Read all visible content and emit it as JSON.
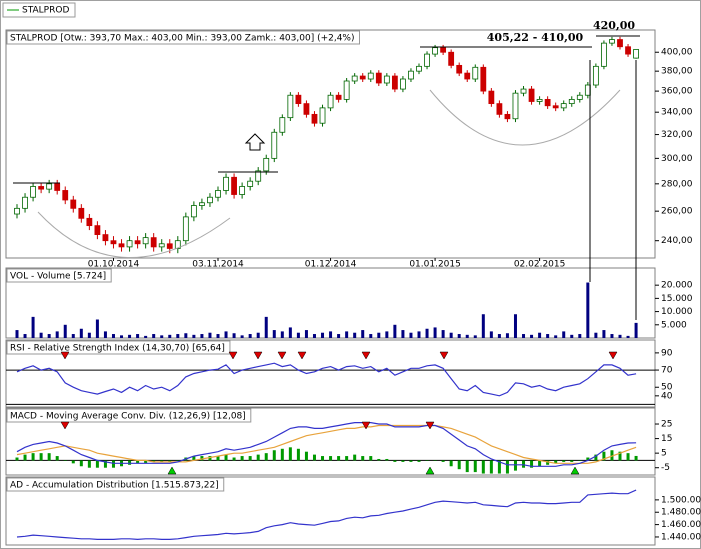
{
  "chart_data": [
    {
      "type": "candlestick",
      "legend": "STALPROD",
      "title": "STALPROD [Otw.: 393,70  Max.: 403,00  Min.: 393,00  Zamk.: 403,00] (+2,4%)",
      "annotations": [
        "405,22 - 410,00",
        "420,00"
      ],
      "log_scale": true,
      "up_color": "#009900",
      "down_color": "#cc0000",
      "categories": [
        null,
        null,
        null,
        null,
        null,
        null,
        null,
        null,
        null,
        null,
        null,
        null,
        "01.10.2014",
        null,
        null,
        null,
        null,
        null,
        null,
        null,
        null,
        null,
        null,
        null,
        null,
        "03.11.2014",
        null,
        null,
        null,
        null,
        null,
        null,
        null,
        null,
        null,
        null,
        null,
        null,
        null,
        "01.12.2014",
        null,
        null,
        null,
        null,
        null,
        null,
        null,
        null,
        null,
        null,
        null,
        null,
        "01.01.2015",
        null,
        null,
        null,
        null,
        null,
        null,
        null,
        null,
        null,
        null,
        null,
        null,
        "02.02.2015",
        null,
        null,
        null,
        null,
        null,
        null,
        null,
        null,
        null,
        null,
        null,
        null
      ],
      "open": [
        258,
        262,
        270,
        278,
        276,
        280,
        275,
        268,
        262,
        255,
        250,
        244,
        240,
        238,
        236,
        240,
        238,
        242,
        236,
        238,
        235,
        240,
        256,
        264,
        266,
        270,
        275,
        285,
        272,
        278,
        282,
        290,
        300,
        322,
        335,
        356,
        348,
        338,
        330,
        344,
        356,
        352,
        370,
        375,
        372,
        378,
        368,
        375,
        362,
        372,
        380,
        385,
        398,
        405,
        400,
        386,
        378,
        372,
        384,
        360,
        348,
        338,
        334,
        358,
        362,
        350,
        352,
        346,
        344,
        348,
        352,
        356,
        366,
        385,
        410,
        414,
        406,
        393.7
      ],
      "high": [
        265,
        273,
        281,
        281,
        283,
        283,
        278,
        271,
        265,
        258,
        253,
        247,
        243,
        241,
        243,
        243,
        245,
        245,
        241,
        241,
        243,
        259,
        267,
        269,
        273,
        278,
        288,
        288,
        281,
        285,
        293,
        303,
        325,
        338,
        359,
        359,
        351,
        341,
        347,
        359,
        359,
        373,
        378,
        378,
        381,
        381,
        378,
        378,
        375,
        383,
        388,
        401,
        408,
        408,
        403,
        389,
        381,
        387,
        387,
        363,
        351,
        341,
        361,
        365,
        365,
        355,
        355,
        349,
        351,
        355,
        359,
        369,
        388,
        413,
        417,
        417,
        409,
        403
      ],
      "low": [
        255,
        259,
        267,
        273,
        273,
        272,
        265,
        259,
        252,
        247,
        241,
        237,
        235,
        233,
        233,
        235,
        235,
        233,
        233,
        232,
        232,
        237,
        253,
        261,
        263,
        267,
        272,
        269,
        269,
        275,
        279,
        287,
        297,
        319,
        332,
        345,
        335,
        327,
        327,
        341,
        349,
        349,
        367,
        369,
        369,
        365,
        365,
        359,
        359,
        369,
        377,
        382,
        395,
        397,
        383,
        375,
        369,
        369,
        357,
        345,
        335,
        331,
        331,
        355,
        347,
        347,
        343,
        341,
        341,
        345,
        349,
        353,
        363,
        382,
        407,
        403,
        395,
        393
      ],
      "close": [
        262,
        270,
        278,
        276,
        280,
        275,
        268,
        262,
        255,
        250,
        244,
        240,
        238,
        236,
        240,
        238,
        242,
        236,
        238,
        235,
        240,
        256,
        264,
        266,
        270,
        275,
        285,
        272,
        278,
        282,
        290,
        300,
        322,
        335,
        356,
        348,
        338,
        330,
        344,
        356,
        352,
        370,
        375,
        372,
        378,
        368,
        375,
        362,
        372,
        380,
        385,
        398,
        405,
        400,
        386,
        378,
        372,
        384,
        360,
        348,
        338,
        334,
        358,
        362,
        350,
        352,
        346,
        344,
        348,
        352,
        356,
        366,
        385,
        410,
        414,
        406,
        398,
        403
      ],
      "ylim": [
        229,
        418
      ],
      "yticks": [
        {
          "value": 240,
          "label": "240,00"
        },
        {
          "value": 260,
          "label": "260,00"
        },
        {
          "value": 280,
          "label": "280,00"
        },
        {
          "value": 300,
          "label": "300,00"
        },
        {
          "value": 320,
          "label": "320,00"
        },
        {
          "value": 340,
          "label": "340,00"
        },
        {
          "value": 360,
          "label": "360,00"
        },
        {
          "value": 380,
          "label": "380,00"
        },
        {
          "value": 400,
          "label": "400,00"
        }
      ]
    },
    {
      "type": "bar",
      "title": "VOL - Volume [5.724]",
      "color": "#000080",
      "values": [
        3000,
        1500,
        8000,
        2000,
        1500,
        2500,
        5000,
        1500,
        3500,
        2000,
        7000,
        2500,
        1500,
        1000,
        1200,
        1500,
        800,
        1500,
        1000,
        1200,
        1500,
        1800,
        1200,
        1500,
        2000,
        1500,
        2500,
        1800,
        1000,
        1500,
        2000,
        8000,
        3000,
        2500,
        4000,
        2000,
        3000,
        1500,
        2000,
        2500,
        1500,
        2500,
        2000,
        3000,
        1500,
        2000,
        2500,
        5000,
        3000,
        2000,
        2500,
        3500,
        4000,
        3000,
        2000,
        1500,
        1200,
        1000,
        9000,
        2500,
        1500,
        1800,
        9000,
        1500,
        1200,
        2000,
        1500,
        1000,
        2500,
        1200,
        1500,
        21000,
        2000,
        3000,
        1500,
        1200,
        800,
        5724
      ],
      "ylim": [
        0,
        26500
      ],
      "yticks": [
        {
          "value": 5000,
          "label": "5.000"
        },
        {
          "value": 10000,
          "label": "10.000"
        },
        {
          "value": 15000,
          "label": "15.000"
        },
        {
          "value": 20000,
          "label": "20.000"
        }
      ]
    },
    {
      "type": "line",
      "title": "RSI - Relative Strength Index (14,30,70) [65,64]",
      "color": "#3333cc",
      "values": [
        68,
        72,
        75,
        70,
        72,
        68,
        55,
        50,
        46,
        44,
        42,
        45,
        48,
        44,
        50,
        46,
        52,
        48,
        50,
        46,
        52,
        62,
        66,
        68,
        70,
        71,
        76,
        66,
        70,
        72,
        74,
        76,
        78,
        74,
        76,
        70,
        66,
        68,
        72,
        74,
        70,
        74,
        75,
        72,
        74,
        68,
        72,
        64,
        68,
        72,
        72,
        75,
        76,
        72,
        60,
        48,
        46,
        52,
        44,
        42,
        40,
        44,
        55,
        54,
        50,
        52,
        48,
        46,
        50,
        52,
        54,
        60,
        68,
        76,
        76,
        72,
        64,
        65.64
      ],
      "reference_lines": [
        30,
        70
      ],
      "ylim": [
        27,
        105
      ],
      "yticks": [
        40,
        50,
        70,
        90
      ]
    },
    {
      "type": "combo",
      "title": "MACD - Moving Average Conv. Div. (12,26,9) [12,08]",
      "series": [
        {
          "type": "bar",
          "color": "#009900",
          "values": [
            2,
            4,
            5,
            5,
            5,
            3,
            0,
            -2,
            -4,
            -5,
            -5,
            -5,
            -5,
            -4,
            -3,
            -2,
            -2,
            -1,
            -1,
            -1,
            0,
            2,
            3,
            3,
            3,
            3,
            4,
            2,
            3,
            3,
            4,
            5,
            7,
            8,
            9,
            8,
            6,
            4,
            3,
            3,
            3,
            3,
            4,
            3,
            3,
            1,
            1,
            -1,
            -1,
            -1,
            -1,
            0,
            0,
            -1,
            -4,
            -6,
            -8,
            -8,
            -9,
            -9,
            -9,
            -9,
            -7,
            -5,
            -5,
            -4,
            -3,
            -2,
            -1,
            -1,
            0,
            2,
            4,
            6,
            7,
            6,
            5,
            3.08
          ]
        },
        {
          "type": "line",
          "color": "#e8a33c",
          "values": [
            4,
            5,
            6,
            7,
            8,
            9,
            10,
            9,
            8,
            7,
            5,
            4,
            3,
            2,
            1,
            0,
            0,
            -1,
            -1,
            -1,
            -1,
            -1,
            0,
            1,
            2,
            3,
            4,
            5,
            5,
            6,
            7,
            8,
            9,
            11,
            13,
            15,
            17,
            18,
            19,
            20,
            21,
            22,
            22,
            23,
            23,
            24,
            24,
            24,
            24,
            24,
            24,
            24,
            24,
            23,
            22,
            20,
            18,
            16,
            13,
            10,
            8,
            6,
            4,
            2,
            1,
            0,
            -1,
            -2,
            -2,
            -2,
            -2,
            -2,
            -1,
            1,
            3,
            5,
            7,
            9
          ]
        },
        {
          "type": "line",
          "color": "#3333cc",
          "values": [
            6,
            9,
            11,
            12,
            13,
            12,
            10,
            7,
            4,
            2,
            0,
            -1,
            -2,
            -2,
            -2,
            -2,
            -2,
            -2,
            -2,
            -2,
            -1,
            1,
            3,
            4,
            5,
            6,
            8,
            7,
            8,
            9,
            11,
            13,
            16,
            19,
            22,
            23,
            23,
            22,
            22,
            23,
            24,
            25,
            26,
            26,
            26,
            25,
            25,
            23,
            23,
            23,
            23,
            24,
            24,
            22,
            18,
            14,
            10,
            8,
            4,
            1,
            -1,
            -3,
            -3,
            -3,
            -4,
            -4,
            -4,
            -4,
            -3,
            -3,
            -2,
            0,
            3,
            7,
            10,
            11,
            12,
            12.08
          ]
        }
      ],
      "ylim": [
        -10,
        36
      ],
      "yticks": [
        -5,
        5,
        15,
        25
      ]
    },
    {
      "type": "line",
      "title": "AD - Accumulation Distribution [1.515.873,22]",
      "color": "#3333cc",
      "values": [
        1440000,
        1441000,
        1443000,
        1442000,
        1441000,
        1440000,
        1439000,
        1438000,
        1437000,
        1437000,
        1436000,
        1436000,
        1436000,
        1437000,
        1437000,
        1436000,
        1437000,
        1437000,
        1436000,
        1436000,
        1437000,
        1439000,
        1441000,
        1442000,
        1443000,
        1444000,
        1446000,
        1445000,
        1446000,
        1447000,
        1449000,
        1455000,
        1458000,
        1460000,
        1463000,
        1461000,
        1460000,
        1459000,
        1462000,
        1465000,
        1466000,
        1470000,
        1472000,
        1471000,
        1474000,
        1475000,
        1478000,
        1480000,
        1482000,
        1485000,
        1488000,
        1492000,
        1496000,
        1498000,
        1497000,
        1496000,
        1495000,
        1496000,
        1492000,
        1491000,
        1490000,
        1489000,
        1495000,
        1496000,
        1495000,
        1495000,
        1494000,
        1494000,
        1495000,
        1496000,
        1496000,
        1508000,
        1509000,
        1510000,
        1511000,
        1510000,
        1510000,
        1515873.22
      ],
      "ylim": [
        1427000,
        1537000
      ],
      "yticks": [
        {
          "value": 1440000,
          "label": "1.440.000"
        },
        {
          "value": 1460000,
          "label": "1.460.000"
        },
        {
          "value": 1480000,
          "label": "1.480.000"
        },
        {
          "value": 1500000,
          "label": "1.500.000"
        }
      ]
    }
  ]
}
